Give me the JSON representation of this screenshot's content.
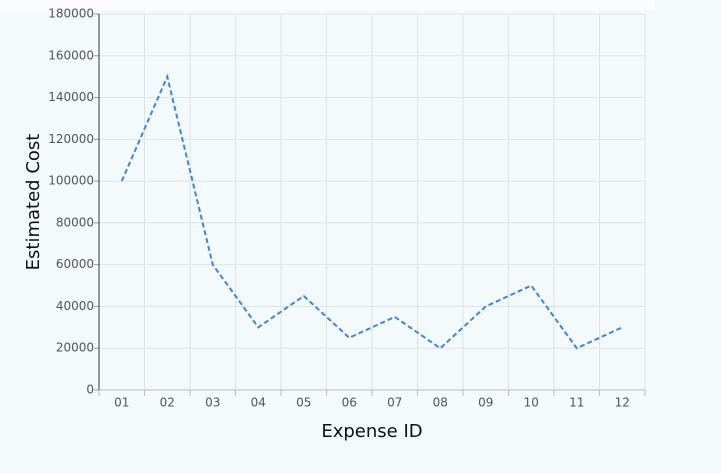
{
  "chart_data": {
    "type": "line",
    "x_label": "Expense ID",
    "y_label": "Estimated Cost",
    "categories": [
      "01",
      "02",
      "03",
      "04",
      "05",
      "06",
      "07",
      "08",
      "09",
      "10",
      "11",
      "12"
    ],
    "values": [
      100000,
      150000,
      60000,
      30000,
      45000,
      25000,
      35000,
      20000,
      40000,
      50000,
      20000,
      30000
    ],
    "color": "#3b86e0",
    "ylim": [
      0,
      180000
    ],
    "yticks": [
      0,
      20000,
      40000,
      60000,
      80000,
      100000,
      120000,
      140000,
      160000,
      180000
    ],
    "grid": true
  }
}
